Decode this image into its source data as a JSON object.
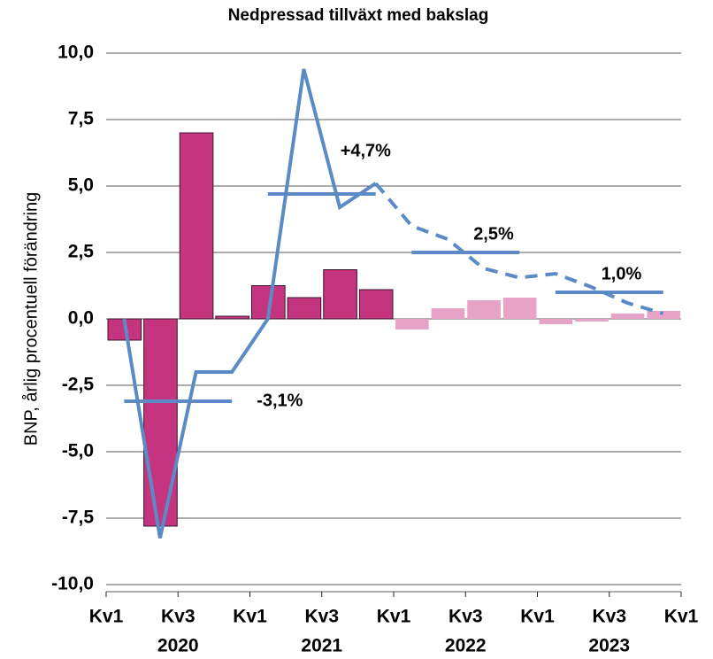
{
  "chart_data": {
    "type": "bar",
    "title": "Nedpressad tillväxt med bakslag",
    "ylabel": "BNP, årlig procentuell förändring",
    "ylim": [
      -10,
      10
    ],
    "yticks": [
      {
        "value": 10,
        "label": "10,0"
      },
      {
        "value": 7.5,
        "label": "7,5"
      },
      {
        "value": 5,
        "label": "5,0"
      },
      {
        "value": 2.5,
        "label": "2,5"
      },
      {
        "value": 0,
        "label": "0,0"
      },
      {
        "value": -2.5,
        "label": "-2,5"
      },
      {
        "value": -5,
        "label": "-5,0"
      },
      {
        "value": -7.5,
        "label": "-7,5"
      },
      {
        "value": -10,
        "label": "-10,0"
      }
    ],
    "xlim": [
      0,
      16
    ],
    "xticks": [
      {
        "value": 0,
        "label": "Kv1"
      },
      {
        "value": 2,
        "label": "Kv3"
      },
      {
        "value": 4,
        "label": "Kv1"
      },
      {
        "value": 6,
        "label": "Kv3"
      },
      {
        "value": 8,
        "label": "Kv1"
      },
      {
        "value": 10,
        "label": "Kv3"
      },
      {
        "value": 12,
        "label": "Kv1"
      },
      {
        "value": 14,
        "label": "Kv3"
      },
      {
        "value": 16,
        "label": "Kv1"
      }
    ],
    "year_labels": [
      "2020",
      "2021",
      "2022",
      "2023"
    ],
    "grid": true,
    "x": [
      0,
      1,
      2,
      3,
      4,
      5,
      6,
      7,
      8,
      9,
      10,
      11,
      12,
      13,
      14,
      15
    ],
    "values": [
      -0.8,
      -7.8,
      7.0,
      0.1,
      1.25,
      0.8,
      1.85,
      1.1,
      -0.4,
      0.4,
      0.7,
      0.8,
      -0.2,
      -0.1,
      0.2,
      0.3
    ],
    "colors": [
      "#c4347f",
      "#c4347f",
      "#c4347f",
      "#c4347f",
      "#c4347f",
      "#c4347f",
      "#c4347f",
      "#c4347f",
      "#e6a3c6",
      "#e6a3c6",
      "#e6a3c6",
      "#e6a3c6",
      "#e6a3c6",
      "#e6a3c6",
      "#e6a3c6",
      "#e6a3c6"
    ],
    "edgecolors": [
      "#3a1428",
      "#3a1428",
      "#3a1428",
      "#3a1428",
      "#3a1428",
      "#3a1428",
      "#3a1428",
      "#3a1428",
      null,
      null,
      null,
      null,
      null,
      null,
      null,
      null
    ],
    "lines": [
      {
        "color": "#5b8ac6",
        "dashed": false,
        "values": [
          0,
          -8.25,
          -2.0,
          -2.0,
          0,
          9.4,
          4.2,
          5.1,
          null,
          null,
          null,
          null,
          null,
          null,
          null,
          null
        ]
      },
      {
        "color": "#5b8ac6",
        "dashed": true,
        "values": [
          null,
          null,
          null,
          null,
          null,
          null,
          null,
          5.1,
          3.5,
          3.0,
          1.9,
          1.55,
          1.7,
          1.2,
          0.6,
          0.2
        ]
      }
    ],
    "annual": {
      "color": "#5b8ac6",
      "values": [
        -3.1,
        4.7,
        2.5,
        1.0
      ],
      "value_labels": [
        "-3,1%",
        "+4,7%",
        "2,5%",
        "1,0%"
      ]
    }
  }
}
